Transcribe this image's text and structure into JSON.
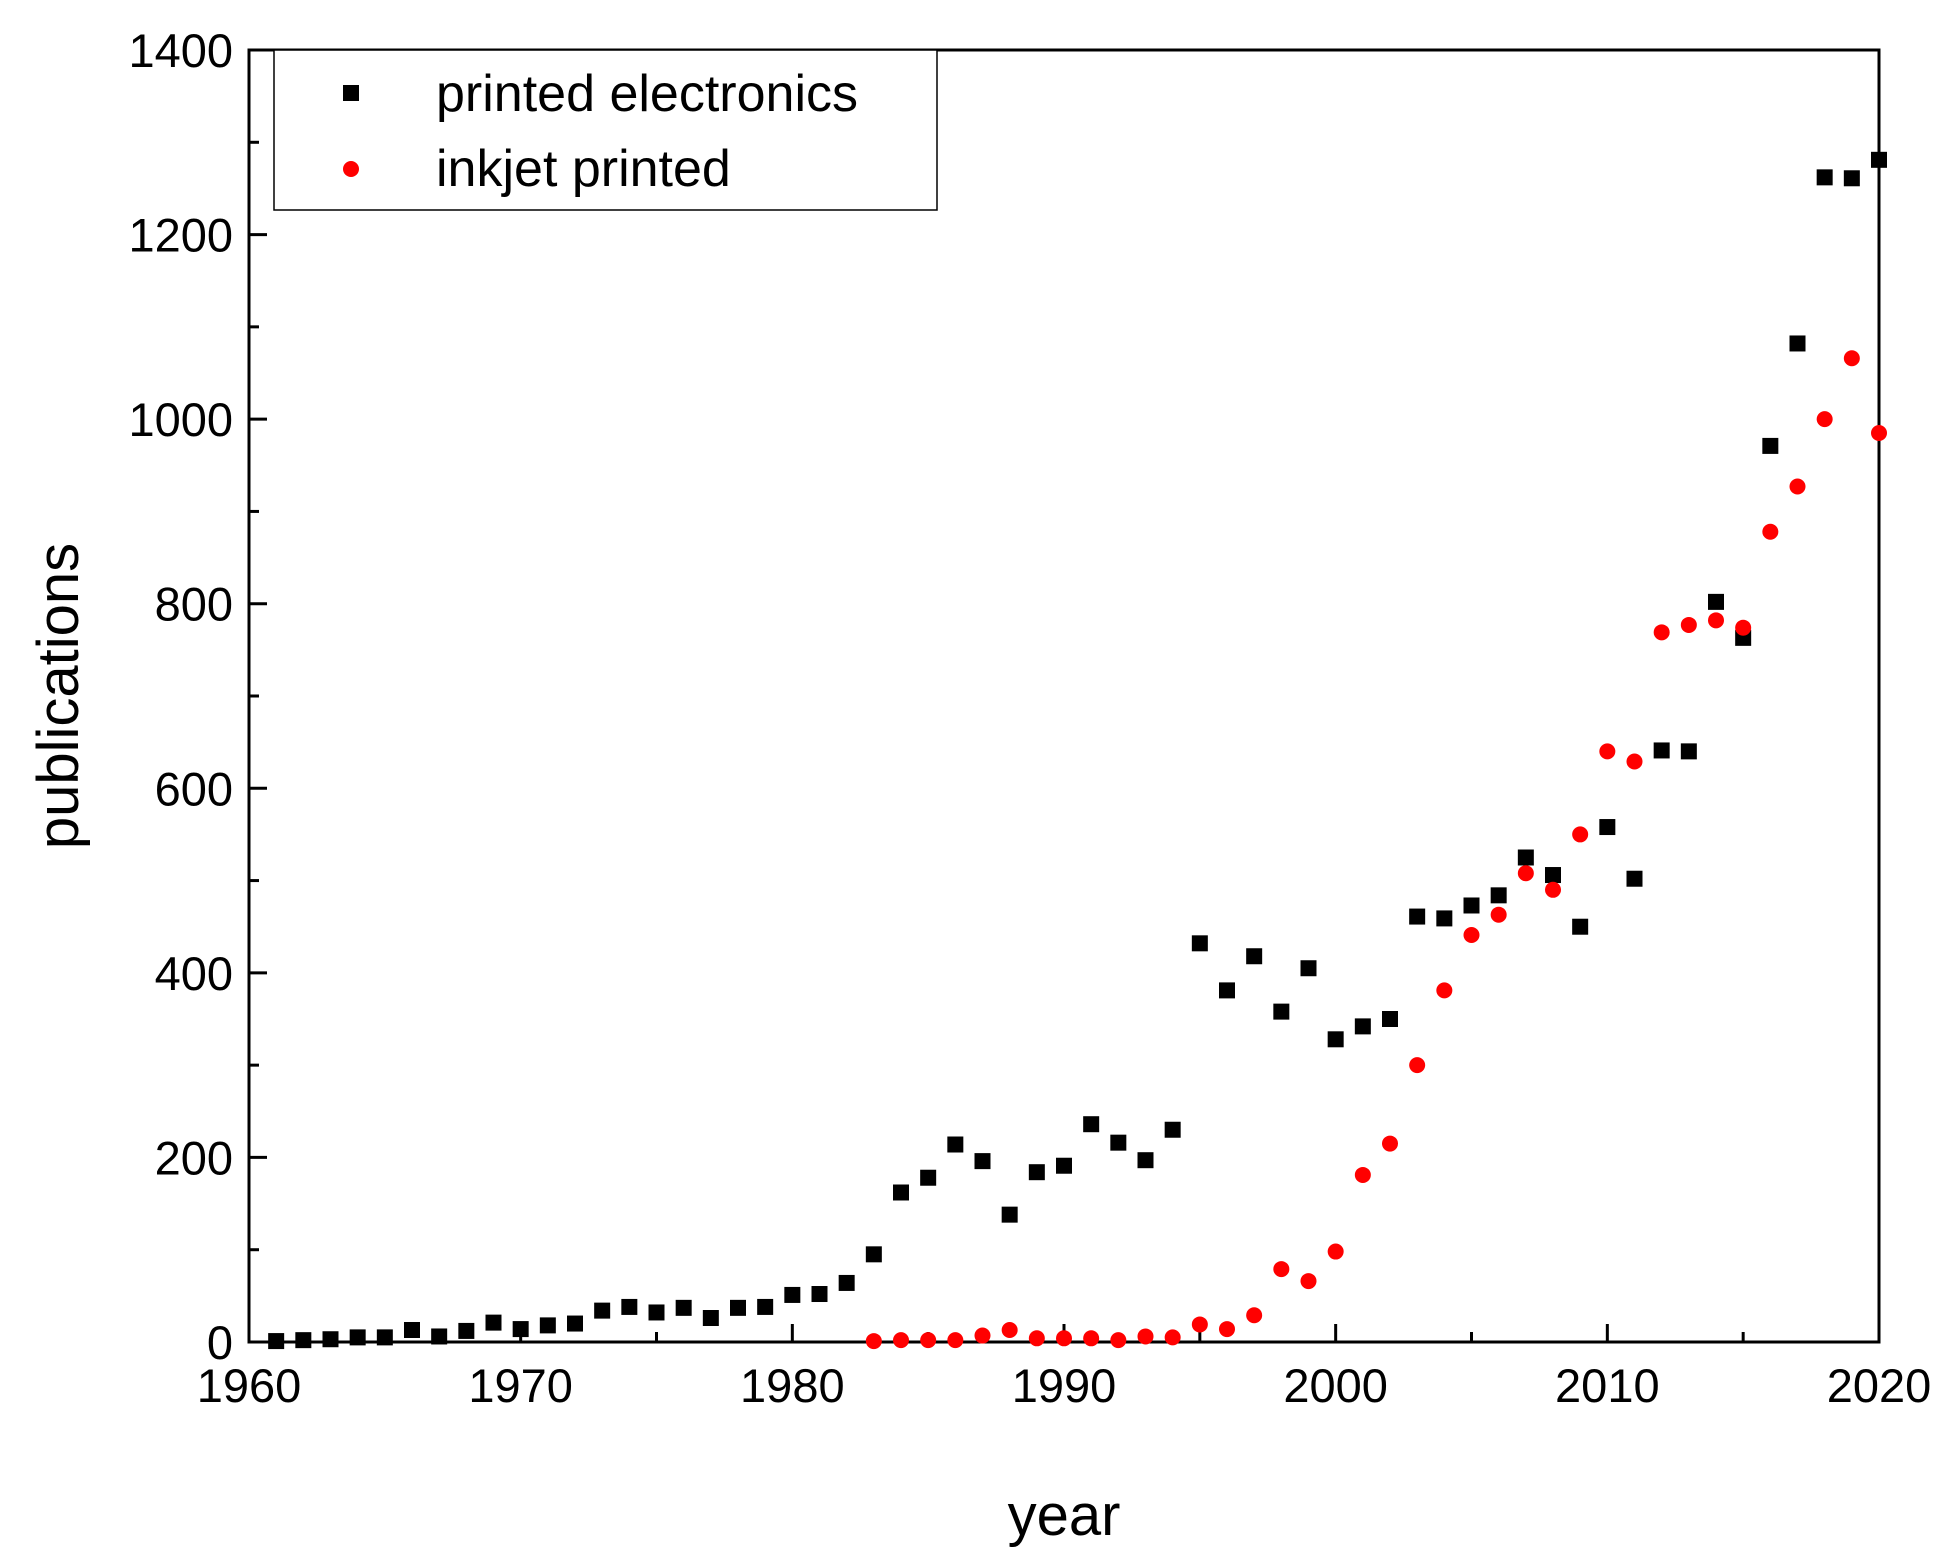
{
  "chart_data": {
    "type": "scatter",
    "xlabel": "year",
    "ylabel": "publications",
    "xlim": [
      1960,
      2020
    ],
    "ylim": [
      0,
      1400
    ],
    "x_ticks": [
      1960,
      1970,
      1980,
      1990,
      2000,
      2010,
      2020
    ],
    "y_ticks": [
      0,
      200,
      400,
      600,
      800,
      1000,
      1200,
      1400
    ],
    "legend_position": "top-left",
    "series": [
      {
        "name": "printed electronics",
        "marker": "square",
        "color": "#000000",
        "x": [
          1961,
          1962,
          1963,
          1964,
          1965,
          1966,
          1967,
          1968,
          1969,
          1970,
          1971,
          1972,
          1973,
          1974,
          1975,
          1976,
          1977,
          1978,
          1979,
          1980,
          1981,
          1982,
          1983,
          1984,
          1985,
          1986,
          1987,
          1988,
          1989,
          1990,
          1991,
          1992,
          1993,
          1994,
          1995,
          1996,
          1997,
          1998,
          1999,
          2000,
          2001,
          2002,
          2003,
          2004,
          2005,
          2006,
          2007,
          2008,
          2009,
          2010,
          2011,
          2012,
          2013,
          2014,
          2015,
          2016,
          2017,
          2018,
          2019,
          2020
        ],
        "y": [
          1,
          2,
          3,
          5,
          5,
          13,
          6,
          12,
          21,
          14,
          18,
          20,
          34,
          38,
          32,
          37,
          26,
          37,
          38,
          51,
          52,
          64,
          95,
          162,
          178,
          214,
          196,
          138,
          184,
          191,
          236,
          216,
          197,
          230,
          432,
          381,
          418,
          358,
          405,
          328,
          342,
          350,
          461,
          459,
          473,
          484,
          525,
          506,
          450,
          558,
          502,
          641,
          640,
          802,
          763,
          971,
          1082,
          1262,
          1261,
          1281
        ]
      },
      {
        "name": "inkjet printed",
        "marker": "circle",
        "color": "#ff0000",
        "x": [
          1983,
          1984,
          1985,
          1986,
          1987,
          1988,
          1989,
          1990,
          1991,
          1992,
          1993,
          1994,
          1995,
          1996,
          1997,
          1998,
          1999,
          2000,
          2001,
          2002,
          2003,
          2004,
          2005,
          2006,
          2007,
          2008,
          2009,
          2010,
          2011,
          2012,
          2013,
          2014,
          2015,
          2016,
          2017,
          2018,
          2019,
          2020
        ],
        "y": [
          1,
          2,
          2,
          2,
          7,
          13,
          4,
          4,
          4,
          2,
          6,
          5,
          19,
          14,
          29,
          79,
          66,
          98,
          181,
          215,
          300,
          381,
          441,
          463,
          508,
          490,
          550,
          640,
          629,
          769,
          777,
          782,
          774,
          878,
          927,
          1000,
          1066,
          985
        ]
      }
    ]
  }
}
